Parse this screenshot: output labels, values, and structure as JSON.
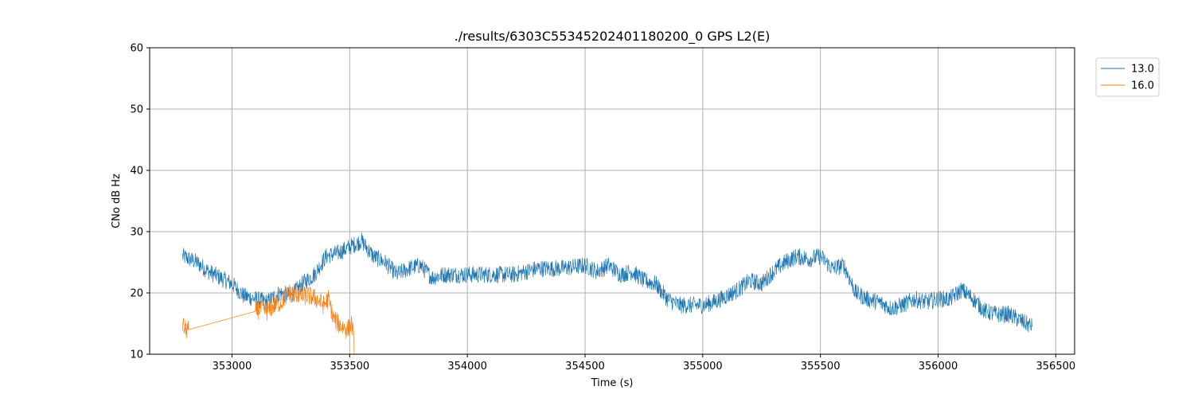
{
  "chart_data": {
    "type": "line",
    "title": "./results/6303C55345202401180200_0 GPS L2(E)",
    "xlabel": "Time (s)",
    "ylabel": "CNo dB Hz",
    "xlim": [
      352650,
      356580
    ],
    "ylim": [
      10,
      60
    ],
    "xticks": [
      353000,
      353500,
      354000,
      354500,
      355000,
      355500,
      356000,
      356500
    ],
    "yticks": [
      10,
      20,
      30,
      40,
      50,
      60
    ],
    "grid": true,
    "legend_position": "upper-right-outside",
    "series": [
      {
        "name": "13.0",
        "color": "#1f77b4",
        "noise": 1.4,
        "x": [
          352790,
          352850,
          352900,
          352950,
          353000,
          353050,
          353100,
          353150,
          353200,
          353250,
          353300,
          353350,
          353400,
          353450,
          353500,
          353550,
          353600,
          353650,
          353700,
          353750,
          353800,
          353850,
          353900,
          353950,
          354000,
          354100,
          354200,
          354300,
          354400,
          354500,
          354550,
          354600,
          354650,
          354700,
          354750,
          354800,
          354850,
          354900,
          354950,
          355000,
          355050,
          355100,
          355150,
          355200,
          355250,
          355300,
          355350,
          355400,
          355450,
          355500,
          355550,
          355600,
          355650,
          355700,
          355750,
          355800,
          355850,
          355900,
          355950,
          356000,
          356050,
          356100,
          356150,
          356200,
          356250,
          356300,
          356350,
          356400
        ],
        "y": [
          26,
          25,
          23.5,
          22.5,
          21.5,
          19.5,
          19,
          18.5,
          20,
          19.5,
          21.5,
          23,
          26,
          26.5,
          27.5,
          28.5,
          26,
          25,
          23,
          24,
          24.5,
          22.5,
          23,
          23,
          23,
          23,
          23,
          24,
          24,
          24.5,
          23.5,
          24.5,
          23,
          23.5,
          22,
          21.5,
          19,
          18,
          18,
          18,
          18.5,
          19.5,
          20.5,
          22,
          21.5,
          23.5,
          25,
          26,
          25.5,
          26,
          24,
          24.5,
          20,
          19,
          18.5,
          17.5,
          18,
          19,
          18.5,
          19,
          19,
          20.5,
          19,
          17,
          16.5,
          16.5,
          15.5,
          14.5
        ]
      },
      {
        "name": "16.0",
        "color": "#ff7f0e",
        "noise": 1.6,
        "x": [
          352790,
          352800,
          352815,
          353100,
          353120,
          353150,
          353180,
          353210,
          353240,
          353270,
          353300,
          353330,
          353360,
          353390,
          353410,
          353430,
          353450,
          353470,
          353490,
          353510,
          353520
        ],
        "y": [
          15,
          14,
          14,
          17,
          17.5,
          17,
          18,
          18.5,
          20,
          20,
          19.5,
          19.5,
          19,
          18,
          19,
          16,
          15,
          14.5,
          14,
          15,
          11
        ]
      }
    ]
  }
}
